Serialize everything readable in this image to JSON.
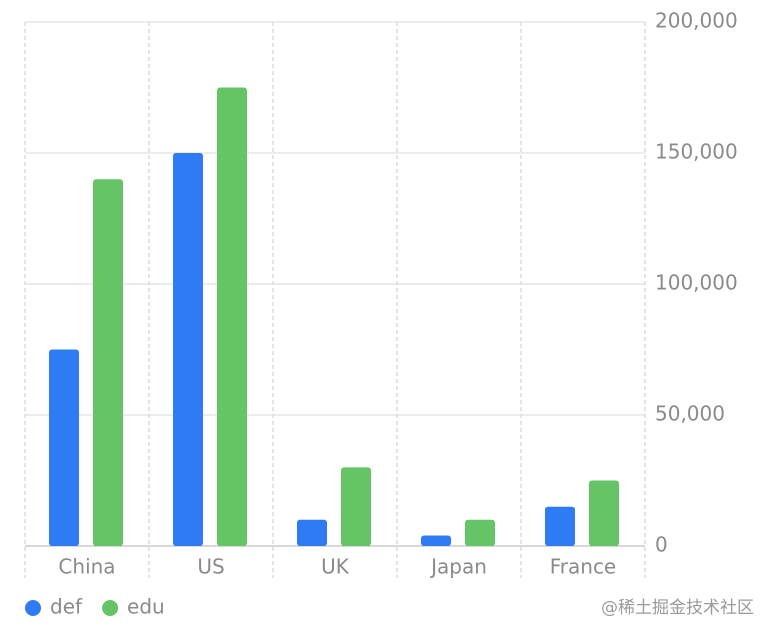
{
  "chart_data": {
    "type": "bar",
    "categories": [
      "China",
      "US",
      "UK",
      "Japan",
      "France"
    ],
    "series": [
      {
        "name": "def",
        "color": "#2f7bf6",
        "values": [
          75000,
          150000,
          10000,
          4000,
          15000
        ]
      },
      {
        "name": "edu",
        "color": "#64c466",
        "values": [
          140000,
          175000,
          30000,
          10000,
          25000
        ]
      }
    ],
    "ylim": [
      0,
      200000
    ],
    "yticks": [
      0,
      {
        "value": 50000,
        "label": "50,000"
      },
      {
        "value": 100000,
        "label": "100,000"
      },
      {
        "value": 150000,
        "label": "150,000"
      },
      {
        "value": 200000,
        "label": "200,000"
      }
    ],
    "grid": true,
    "legend": "bottom-left",
    "watermark": "@稀土掘金技术社区"
  }
}
